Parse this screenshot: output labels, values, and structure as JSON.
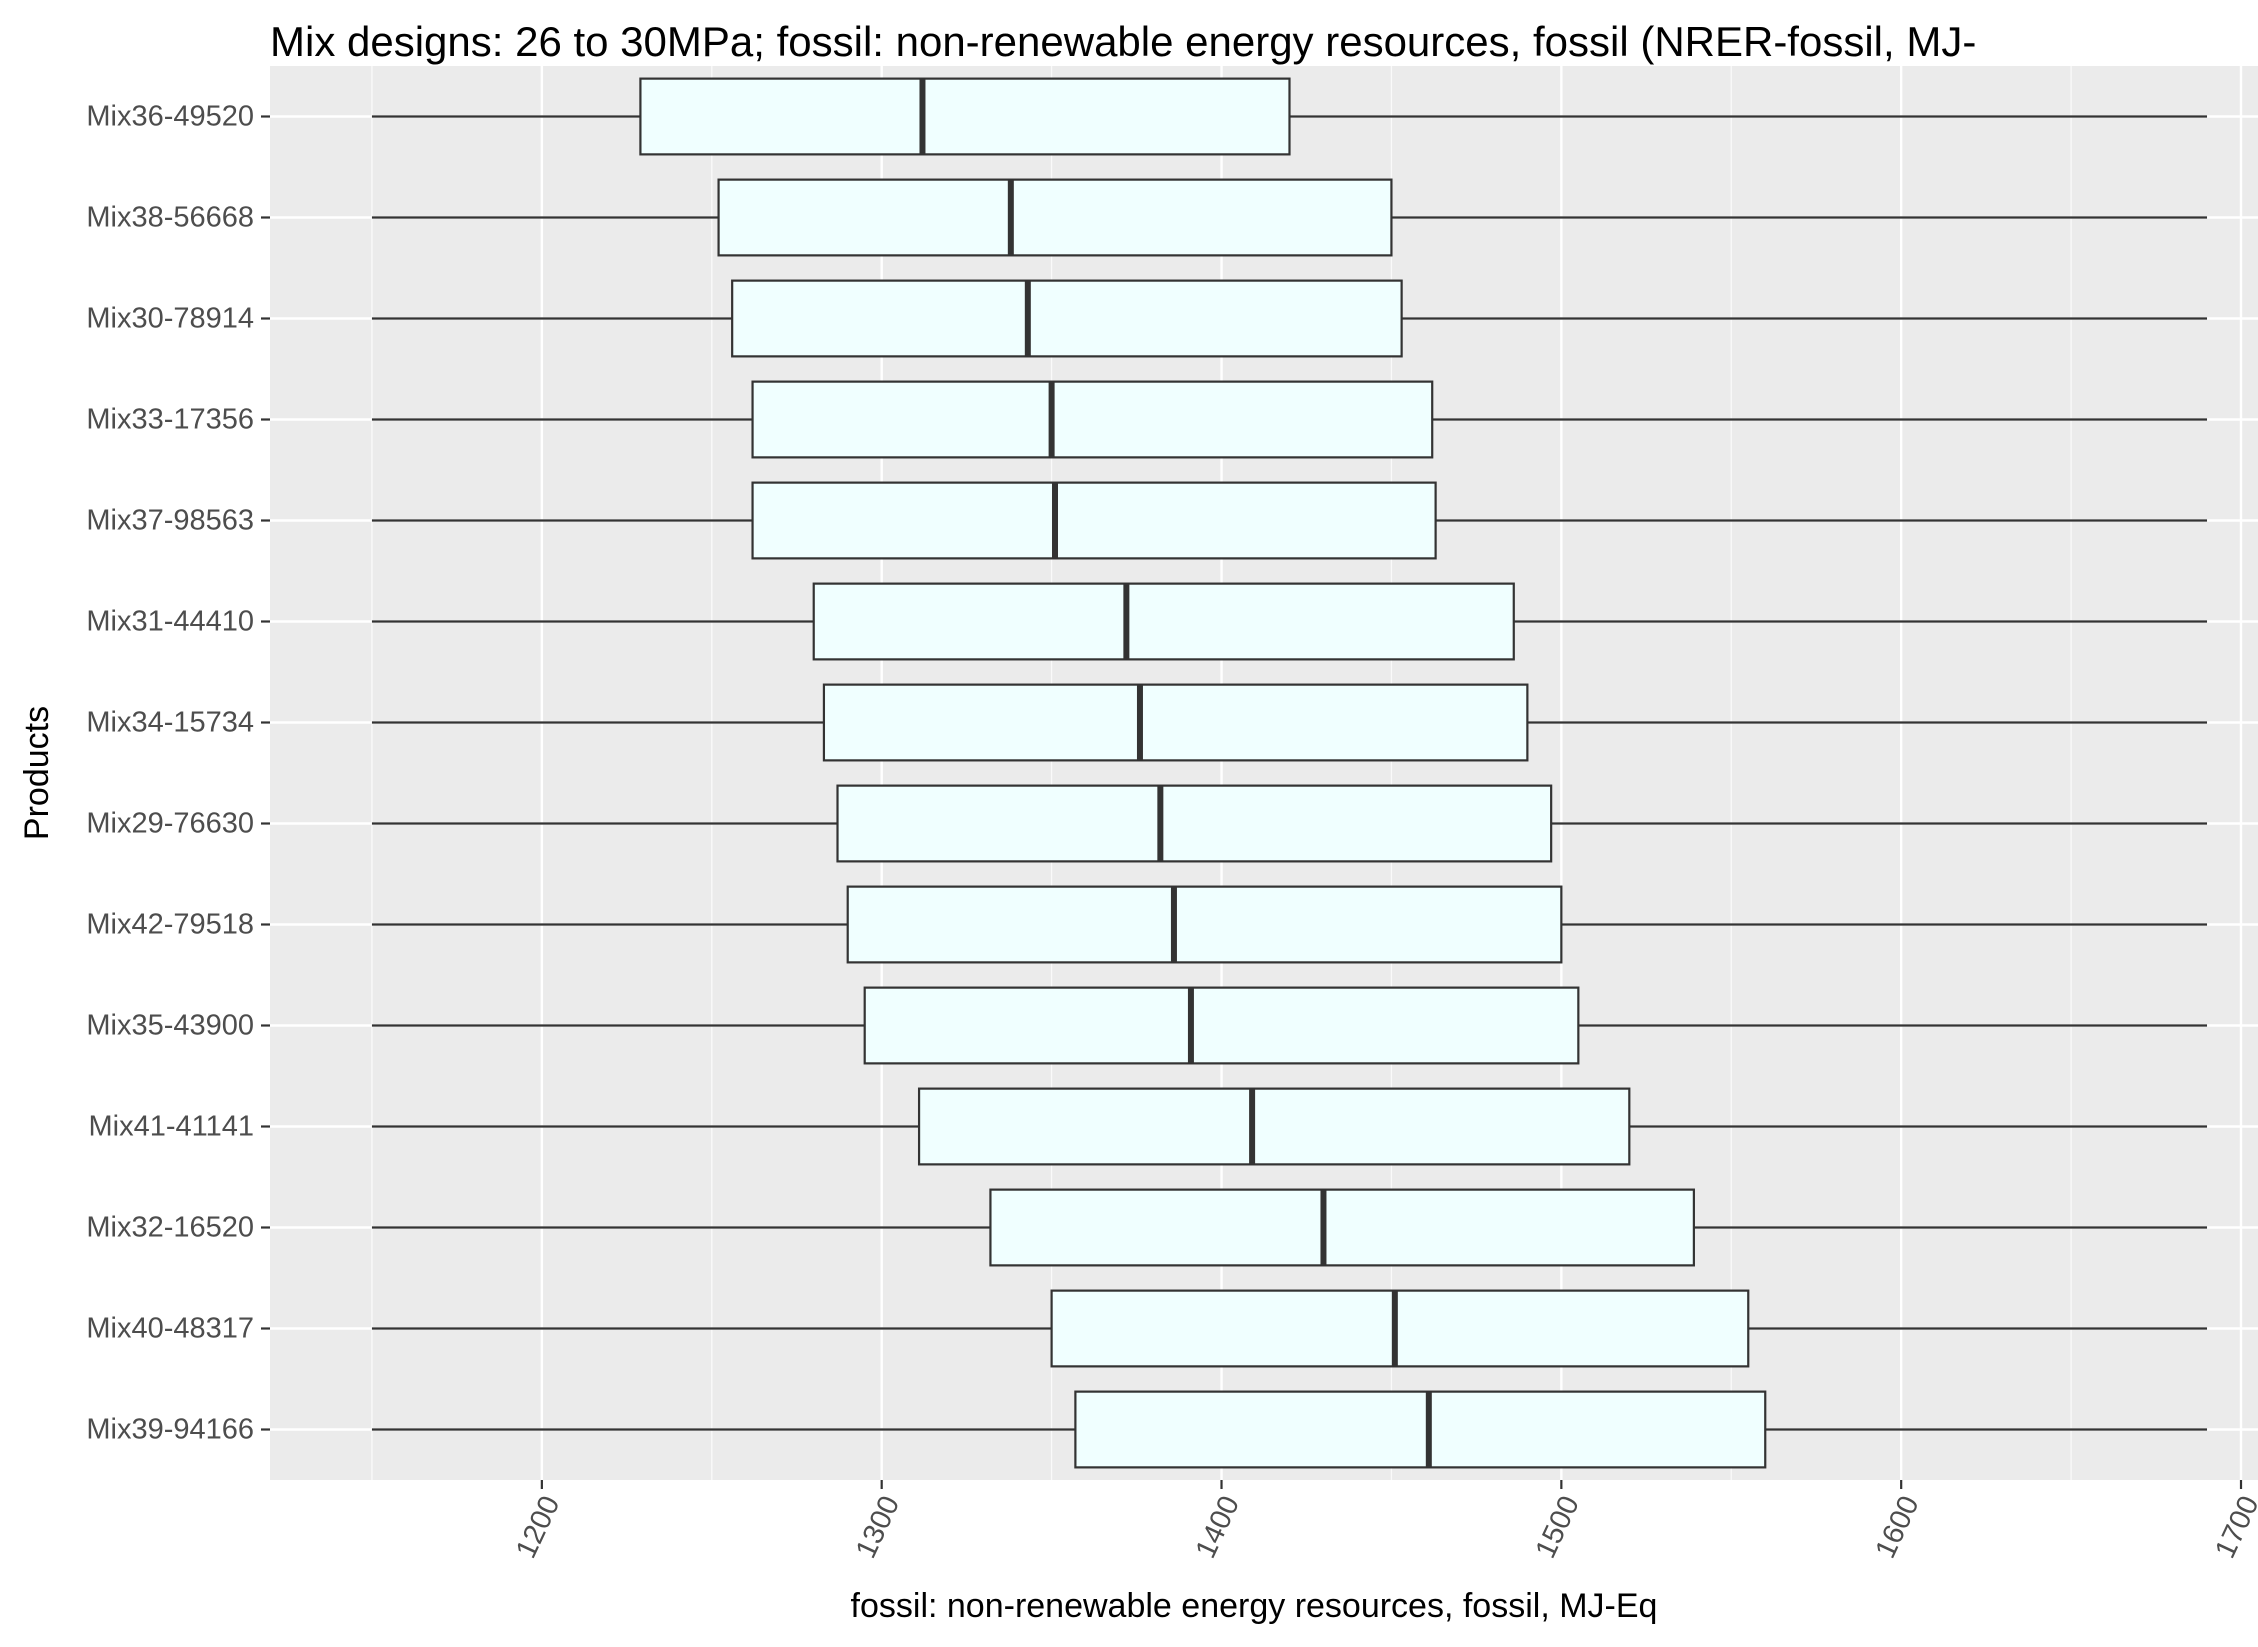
{
  "chart_data": {
    "type": "boxplot",
    "orientation": "horizontal",
    "title": "Mix designs: 26 to 30MPa; fossil: non-renewable energy resources, fossil (NRER-fossil, MJ-",
    "xlabel": "fossil: non-renewable energy resources, fossil, MJ-Eq",
    "ylabel": "Products",
    "xlim": [
      1120,
      1705
    ],
    "x_ticks": [
      1200,
      1300,
      1400,
      1500,
      1600,
      1700
    ],
    "x_tick_labels": [
      "1200",
      "1300",
      "1400",
      "1500",
      "1600",
      "1700"
    ],
    "x_tick_rotation_deg": -65,
    "grid": true,
    "theme": "ggplot-grey",
    "box_fill": "#f0ffff",
    "box_stroke": "#333333",
    "panel_background": "#ebebeb",
    "categories": [
      "Mix36-49520",
      "Mix38-56668",
      "Mix30-78914",
      "Mix33-17356",
      "Mix37-98563",
      "Mix31-44410",
      "Mix34-15734",
      "Mix29-76630",
      "Mix42-79518",
      "Mix35-43900",
      "Mix41-41141",
      "Mix32-16520",
      "Mix40-48317",
      "Mix39-94166"
    ],
    "boxes": [
      {
        "label": "Mix36-49520",
        "min": 1150,
        "q1": 1229,
        "median": 1312,
        "q3": 1420,
        "max": 1690
      },
      {
        "label": "Mix38-56668",
        "min": 1150,
        "q1": 1252,
        "median": 1338,
        "q3": 1450,
        "max": 1690
      },
      {
        "label": "Mix30-78914",
        "min": 1150,
        "q1": 1256,
        "median": 1343,
        "q3": 1453,
        "max": 1690
      },
      {
        "label": "Mix33-17356",
        "min": 1150,
        "q1": 1262,
        "median": 1350,
        "q3": 1462,
        "max": 1690
      },
      {
        "label": "Mix37-98563",
        "min": 1150,
        "q1": 1262,
        "median": 1351,
        "q3": 1463,
        "max": 1690
      },
      {
        "label": "Mix31-44410",
        "min": 1150,
        "q1": 1280,
        "median": 1372,
        "q3": 1486,
        "max": 1690
      },
      {
        "label": "Mix34-15734",
        "min": 1150,
        "q1": 1283,
        "median": 1376,
        "q3": 1490,
        "max": 1690
      },
      {
        "label": "Mix29-76630",
        "min": 1150,
        "q1": 1287,
        "median": 1382,
        "q3": 1497,
        "max": 1690
      },
      {
        "label": "Mix42-79518",
        "min": 1150,
        "q1": 1290,
        "median": 1386,
        "q3": 1500,
        "max": 1690
      },
      {
        "label": "Mix35-43900",
        "min": 1150,
        "q1": 1295,
        "median": 1391,
        "q3": 1505,
        "max": 1690
      },
      {
        "label": "Mix41-41141",
        "min": 1150,
        "q1": 1311,
        "median": 1409,
        "q3": 1520,
        "max": 1690
      },
      {
        "label": "Mix32-16520",
        "min": 1150,
        "q1": 1332,
        "median": 1430,
        "q3": 1539,
        "max": 1690
      },
      {
        "label": "Mix40-48317",
        "min": 1150,
        "q1": 1350,
        "median": 1451,
        "q3": 1555,
        "max": 1690
      },
      {
        "label": "Mix39-94166",
        "min": 1150,
        "q1": 1357,
        "median": 1461,
        "q3": 1560,
        "max": 1690
      }
    ]
  }
}
